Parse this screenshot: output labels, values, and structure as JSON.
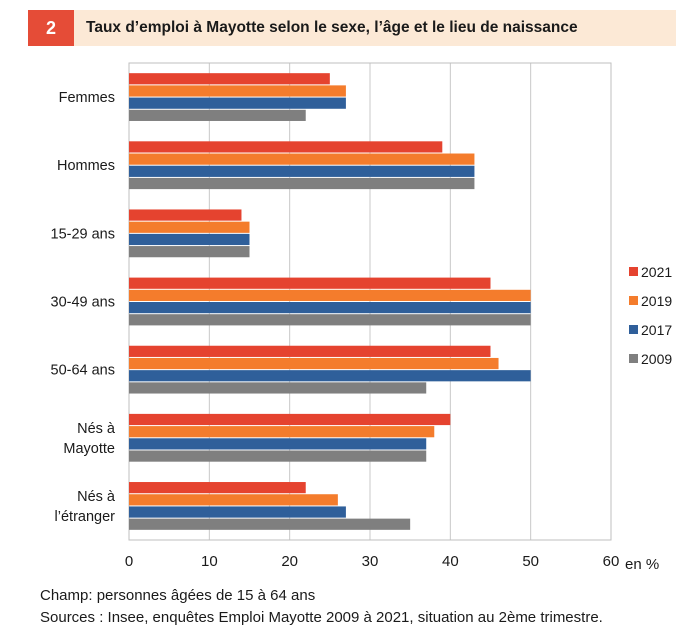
{
  "figure_number": "2",
  "title": "Taux d’emploi  à Mayotte selon le sexe, l’âge et le lieu de naissance",
  "colors": {
    "header_bg": "#fce9d6",
    "badge_bg": "#e54c37",
    "2021": "#e5432f",
    "2019": "#f47c2c",
    "2017": "#2f5f9a",
    "2009": "#7f7f7f"
  },
  "chart_data": {
    "type": "bar",
    "orientation": "horizontal",
    "categories": [
      [
        "Femmes"
      ],
      [
        "Hommes"
      ],
      [
        "15-29 ans"
      ],
      [
        "30-49 ans"
      ],
      [
        "50-64 ans"
      ],
      [
        "Nés à",
        "Mayotte"
      ],
      [
        "Nés à",
        "l’étranger"
      ]
    ],
    "series": [
      {
        "name": "2021",
        "color": "#e5432f",
        "values": [
          25,
          39,
          14,
          45,
          45,
          40,
          22
        ]
      },
      {
        "name": "2019",
        "color": "#f47c2c",
        "values": [
          27,
          43,
          15,
          50,
          46,
          38,
          26
        ]
      },
      {
        "name": "2017",
        "color": "#2f5f9a",
        "values": [
          27,
          43,
          15,
          50,
          50,
          37,
          27
        ]
      },
      {
        "name": "2009",
        "color": "#7f7f7f",
        "values": [
          22,
          43,
          15,
          50,
          37,
          37,
          35
        ]
      }
    ],
    "xlim": [
      0,
      60
    ],
    "xticks": [
      0,
      10,
      20,
      30,
      40,
      50,
      60
    ],
    "unit_label": "en %",
    "grid": "vertical",
    "legend_position": "right"
  },
  "footer": {
    "champ": "Champ: personnes âgées de 15 à 64 ans",
    "sources": "Sources : Insee, enquêtes Emploi Mayotte 2009 à 2021, situation au 2ème trimestre."
  }
}
